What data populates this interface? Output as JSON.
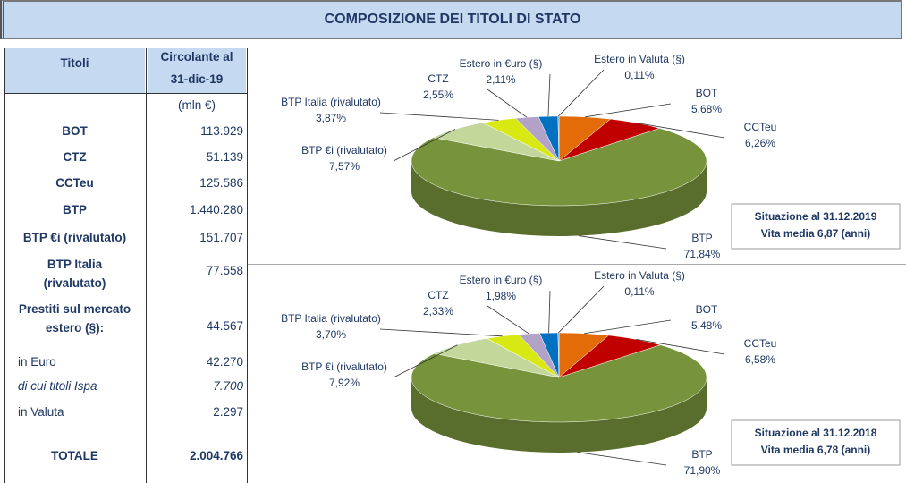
{
  "title": "COMPOSIZIONE  DEI TITOLI DI STATO",
  "table": {
    "header": {
      "col1": "Titoli",
      "col2_line1": "Circolante al",
      "col2_line2": "31-dic-19",
      "unit": "(mln €)"
    },
    "rows": [
      [
        "BOT",
        "113.929"
      ],
      [
        "CTZ",
        "51.139"
      ],
      [
        "CCTeu",
        "125.586"
      ],
      [
        "BTP",
        "1.440.280"
      ],
      [
        "BTP €i (rivalutato)",
        "151.707"
      ],
      [
        "BTP Italia (rivalutato)",
        "77.558"
      ],
      [
        "Prestiti sul mercato estero (§):",
        "44.567"
      ],
      [
        "in Euro",
        "42.270"
      ],
      [
        "di cui titoli Ispa",
        "7.700"
      ],
      [
        "in Valuta",
        "2.297"
      ],
      [
        "TOTALE",
        "2.004.766"
      ]
    ]
  },
  "chart_data": [
    {
      "type": "pie",
      "annotation": [
        "Situazione al 31.12.2019",
        "Vita media 6,87 (anni)"
      ],
      "categories": [
        "BOT",
        "CCTeu",
        "BTP",
        "BTP €i (rivalutato)",
        "BTP Italia (rivalutato)",
        "CTZ",
        "Estero in €uro (§)",
        "Estero in Valuta (§)"
      ],
      "values": [
        5.68,
        6.26,
        71.84,
        7.57,
        3.87,
        2.55,
        2.11,
        0.11
      ],
      "value_labels": [
        "5,68%",
        "6,26%",
        "71,84%",
        "7,57%",
        "3,87%",
        "2,55%",
        "2,11%",
        "0,11%"
      ],
      "colors": [
        "#e36c09",
        "#c00000",
        "#77933c",
        "#c4d79b",
        "#d8e812",
        "#b3a2c7",
        "#0070c0",
        "#4f81bd"
      ]
    },
    {
      "type": "pie",
      "annotation": [
        "Situazione al 31.12.2018",
        "Vita media 6,78 (anni)"
      ],
      "categories": [
        "BOT",
        "CCTeu",
        "BTP",
        "BTP €i (rivalutato)",
        "BTP Italia (rivalutato)",
        "CTZ",
        "Estero in €uro (§)",
        "Estero in Valuta (§)"
      ],
      "values": [
        5.48,
        6.58,
        71.9,
        7.92,
        3.7,
        2.33,
        1.98,
        0.11
      ],
      "value_labels": [
        "5,48%",
        "6,58%",
        "71,90%",
        "7,92%",
        "3,70%",
        "2,33%",
        "1,98%",
        "0,11%"
      ],
      "colors": [
        "#e36c09",
        "#c00000",
        "#77933c",
        "#c4d79b",
        "#d8e812",
        "#b3a2c7",
        "#0070c0",
        "#4f81bd"
      ]
    }
  ]
}
